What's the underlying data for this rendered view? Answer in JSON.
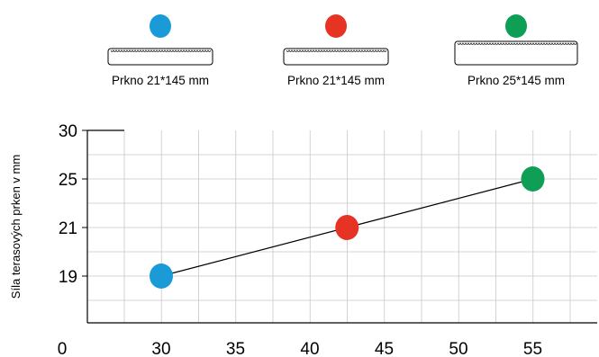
{
  "legend": [
    {
      "label": "Prkno 21*145 mm",
      "color": "#1a9ad6",
      "board": "thin"
    },
    {
      "label": "Prkno 21*145 mm",
      "color": "#e63323",
      "board": "thin"
    },
    {
      "label": "Prkno 25*145 mm",
      "color": "#0e9e55",
      "board": "thick"
    }
  ],
  "chart_data": {
    "type": "line",
    "ylabel": "Síla terasových  prken v mm",
    "x_ticks": [
      "0",
      "30",
      "35",
      "40",
      "45",
      "50",
      "55"
    ],
    "y_ticks": [
      "30",
      "25",
      "21",
      "19"
    ],
    "grid": true,
    "series": [
      {
        "points": [
          {
            "x": 30,
            "y": 19,
            "color": "#1a9ad6"
          },
          {
            "x": 42.5,
            "y": 21,
            "color": "#e63323"
          },
          {
            "x": 55,
            "y": 25,
            "color": "#0e9e55"
          }
        ]
      }
    ]
  }
}
